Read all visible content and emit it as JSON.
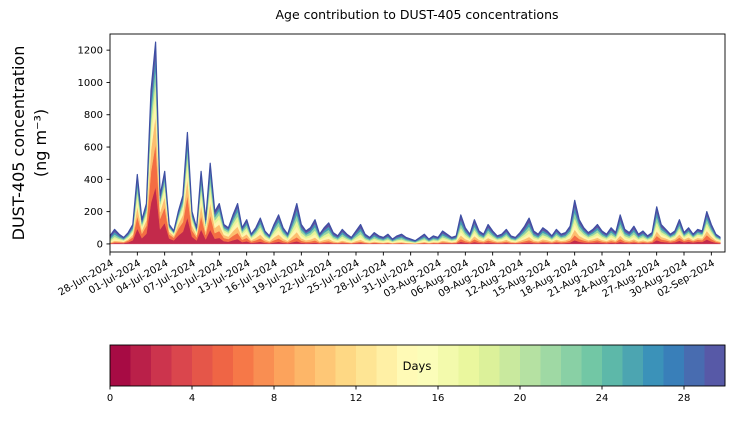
{
  "figure": {
    "background": "#ffffff"
  },
  "chart_data": {
    "type": "area",
    "stacked": true,
    "title": "Age contribution to DUST-405 concentrations",
    "ylabel_line1": "DUST-405 concentration",
    "ylabel_line2": "(ng m⁻³)",
    "xlabel": "",
    "ylim": [
      -50,
      1300
    ],
    "y_ticks": [
      0,
      200,
      400,
      600,
      800,
      1000,
      1200
    ],
    "x_tick_interval_days": 3,
    "x_axis_days": 67.5,
    "x_tick_labels": [
      "28-Jun-2024",
      "01-Jul-2024",
      "04-Jul-2024",
      "07-Jul-2024",
      "10-Jul-2024",
      "13-Jul-2024",
      "16-Jul-2024",
      "19-Jul-2024",
      "22-Jul-2024",
      "25-Jul-2024",
      "28-Jul-2024",
      "31-Jul-2024",
      "03-Aug-2024",
      "06-Aug-2024",
      "09-Aug-2024",
      "12-Aug-2024",
      "15-Aug-2024",
      "18-Aug-2024",
      "21-Aug-2024",
      "24-Aug-2024",
      "27-Aug-2024",
      "30-Aug-2024",
      "02-Sep-2024"
    ],
    "points_per_day": 2,
    "total_concentration": [
      50,
      90,
      60,
      40,
      70,
      120,
      430,
      150,
      250,
      950,
      1250,
      300,
      450,
      120,
      80,
      200,
      300,
      690,
      200,
      100,
      450,
      150,
      500,
      200,
      250,
      120,
      100,
      180,
      250,
      100,
      150,
      60,
      100,
      160,
      80,
      50,
      120,
      180,
      100,
      60,
      150,
      250,
      120,
      80,
      100,
      150,
      60,
      100,
      130,
      70,
      50,
      90,
      60,
      40,
      80,
      120,
      60,
      40,
      70,
      50,
      40,
      60,
      30,
      50,
      60,
      40,
      30,
      20,
      40,
      60,
      30,
      50,
      40,
      80,
      60,
      40,
      50,
      180,
      100,
      60,
      150,
      80,
      60,
      120,
      80,
      50,
      60,
      90,
      50,
      40,
      70,
      110,
      160,
      80,
      60,
      100,
      80,
      50,
      90,
      60,
      70,
      110,
      270,
      150,
      100,
      70,
      90,
      120,
      80,
      60,
      100,
      70,
      180,
      90,
      70,
      110,
      60,
      80,
      50,
      70,
      230,
      120,
      90,
      60,
      80,
      150,
      70,
      100,
      60,
      90,
      80,
      200,
      120,
      60,
      40
    ],
    "age_bands": {
      "labels": [
        "0-4 days",
        "4-8 days",
        "8-12 days",
        "12-16 days",
        "16-20 days",
        "20-24 days",
        "24-28 days",
        "28+ days"
      ],
      "colors": [
        "#c32a4b",
        "#f46d43",
        "#fdbe6f",
        "#fff5ae",
        "#e6f598",
        "#94d4a4",
        "#439bb5",
        "#5e4fa2"
      ],
      "fraction_keyframes": [
        {
          "day": 0,
          "fractions": [
            0.03,
            0.05,
            0.08,
            0.12,
            0.15,
            0.18,
            0.19,
            0.2
          ]
        },
        {
          "day": 3,
          "fractions": [
            0.22,
            0.18,
            0.14,
            0.11,
            0.09,
            0.09,
            0.08,
            0.09
          ]
        },
        {
          "day": 5.5,
          "fractions": [
            0.3,
            0.22,
            0.14,
            0.09,
            0.07,
            0.06,
            0.06,
            0.06
          ]
        },
        {
          "day": 8,
          "fractions": [
            0.25,
            0.2,
            0.15,
            0.11,
            0.08,
            0.07,
            0.07,
            0.07
          ]
        },
        {
          "day": 12,
          "fractions": [
            0.15,
            0.17,
            0.16,
            0.13,
            0.11,
            0.1,
            0.09,
            0.09
          ]
        },
        {
          "day": 17,
          "fractions": [
            0.08,
            0.12,
            0.15,
            0.15,
            0.14,
            0.13,
            0.12,
            0.11
          ]
        },
        {
          "day": 24,
          "fractions": [
            0.05,
            0.08,
            0.11,
            0.14,
            0.15,
            0.15,
            0.15,
            0.17
          ]
        },
        {
          "day": 33,
          "fractions": [
            0.04,
            0.06,
            0.09,
            0.12,
            0.15,
            0.17,
            0.17,
            0.2
          ]
        },
        {
          "day": 40,
          "fractions": [
            0.08,
            0.11,
            0.13,
            0.13,
            0.13,
            0.13,
            0.14,
            0.15
          ]
        },
        {
          "day": 46,
          "fractions": [
            0.06,
            0.09,
            0.12,
            0.13,
            0.14,
            0.14,
            0.15,
            0.17
          ]
        },
        {
          "day": 52,
          "fractions": [
            0.09,
            0.12,
            0.13,
            0.13,
            0.13,
            0.13,
            0.13,
            0.14
          ]
        },
        {
          "day": 58,
          "fractions": [
            0.06,
            0.09,
            0.11,
            0.13,
            0.14,
            0.15,
            0.15,
            0.17
          ]
        },
        {
          "day": 61,
          "fractions": [
            0.12,
            0.13,
            0.13,
            0.13,
            0.12,
            0.12,
            0.12,
            0.13
          ]
        },
        {
          "day": 65,
          "fractions": [
            0.15,
            0.14,
            0.13,
            0.12,
            0.12,
            0.11,
            0.11,
            0.12
          ]
        },
        {
          "day": 67,
          "fractions": [
            0.1,
            0.12,
            0.13,
            0.13,
            0.13,
            0.13,
            0.13,
            0.13
          ]
        }
      ]
    },
    "outline_color": "#3d4fa3",
    "axis_color": "#000000",
    "colorbar": {
      "label": "Days",
      "ticks": [
        0,
        4,
        8,
        12,
        16,
        20,
        24,
        28
      ],
      "range": [
        0,
        30
      ],
      "segments": 30,
      "color_stops": [
        "#9e0142",
        "#d53e4f",
        "#f46d43",
        "#fdae61",
        "#fee08b",
        "#ffffbf",
        "#e6f598",
        "#abdda4",
        "#66c2a5",
        "#3288bd",
        "#5e4fa2"
      ]
    }
  }
}
